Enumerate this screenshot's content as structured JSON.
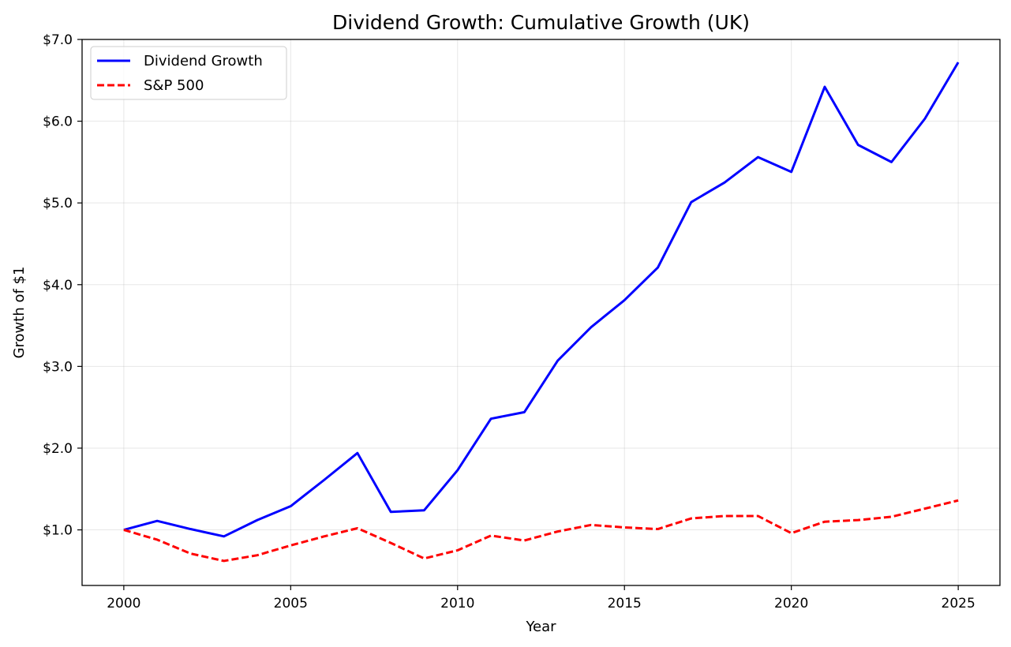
{
  "chart_data": {
    "type": "line",
    "title": "Dividend Growth: Cumulative Growth (UK)",
    "xlabel": "Year",
    "ylabel": "Growth of $1",
    "xlim": [
      1998.75,
      2026.25
    ],
    "ylim": [
      0.32,
      7.0
    ],
    "xticks": [
      2000,
      2005,
      2010,
      2015,
      2020,
      2025
    ],
    "yticks": [
      1.0,
      2.0,
      3.0,
      4.0,
      5.0,
      6.0,
      7.0
    ],
    "ytick_labels": [
      "$1.0",
      "$2.0",
      "$3.0",
      "$4.0",
      "$5.0",
      "$6.0",
      "$7.0"
    ],
    "grid": true,
    "legend_position": "top-left",
    "x": [
      2000,
      2001,
      2002,
      2003,
      2004,
      2005,
      2006,
      2007,
      2008,
      2009,
      2010,
      2011,
      2012,
      2013,
      2014,
      2015,
      2016,
      2017,
      2018,
      2019,
      2020,
      2021,
      2022,
      2023,
      2024,
      2025
    ],
    "series": [
      {
        "name": "Dividend Growth",
        "color": "#0000ff",
        "style": "solid",
        "values": [
          1.0,
          1.11,
          1.01,
          0.92,
          1.12,
          1.29,
          1.61,
          1.94,
          1.22,
          1.24,
          1.73,
          2.36,
          2.44,
          3.07,
          3.48,
          3.81,
          4.21,
          5.01,
          5.25,
          5.56,
          5.38,
          6.42,
          5.71,
          5.5,
          6.03,
          6.72
        ]
      },
      {
        "name": "S&P 500",
        "color": "#ff0000",
        "style": "dashed",
        "values": [
          1.0,
          0.88,
          0.71,
          0.62,
          0.69,
          0.81,
          0.92,
          1.02,
          0.84,
          0.65,
          0.75,
          0.93,
          0.87,
          0.98,
          1.06,
          1.03,
          1.01,
          1.14,
          1.17,
          1.17,
          0.96,
          1.1,
          1.12,
          1.16,
          1.26,
          1.36
        ]
      }
    ]
  }
}
